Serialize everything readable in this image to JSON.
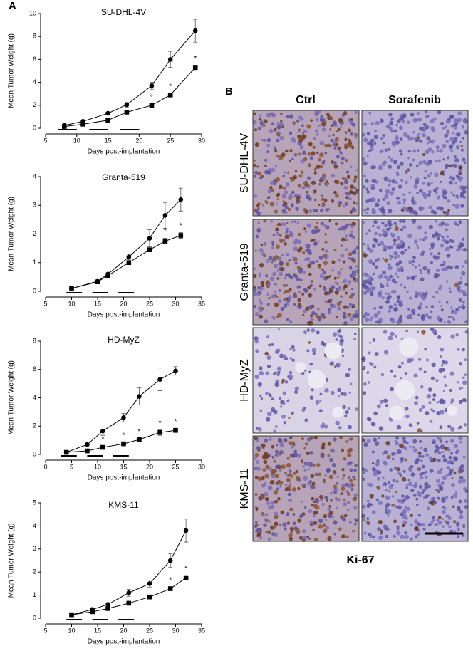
{
  "panel_labels": [
    "A",
    "B"
  ],
  "chart_data": [
    {
      "type": "line",
      "title": "SU-DHL-4V",
      "xlabel": "Days post-implantation",
      "ylabel": "Mean Tumor Weight (g)",
      "x": [
        8,
        11,
        15,
        18,
        22,
        25,
        29
      ],
      "xlim": [
        5,
        30
      ],
      "xticks": [
        5,
        10,
        15,
        20,
        25,
        30
      ],
      "ylim": [
        0,
        10
      ],
      "yticks": [
        0,
        2,
        4,
        6,
        8,
        10
      ],
      "series": [
        {
          "marker": "circle",
          "color": "#000000",
          "values": [
            0.25,
            0.6,
            1.3,
            2.05,
            3.7,
            6.0,
            8.5
          ],
          "errors": [
            0.1,
            0.1,
            0.1,
            0.2,
            0.3,
            0.7,
            1.0
          ]
        },
        {
          "marker": "square",
          "color": "#000000",
          "values": [
            0.15,
            0.35,
            0.7,
            1.4,
            2.0,
            2.9,
            5.3
          ],
          "errors": [
            0.05,
            0.05,
            0.1,
            0.1,
            0.1,
            0.15,
            0.2
          ]
        }
      ],
      "treatment": [
        [
          7,
          10
        ],
        [
          12,
          15
        ],
        [
          17,
          20
        ]
      ],
      "annotations": [
        {
          "x": 22,
          "text": "°"
        },
        {
          "x": 25,
          "text": "*"
        },
        {
          "x": 29,
          "text": "*"
        }
      ]
    },
    {
      "type": "line",
      "title": "Granta-519",
      "xlabel": "Days post-implantation",
      "ylabel": "Mean Tumor Weight (g)",
      "x": [
        10,
        15,
        17,
        21,
        25,
        28,
        31
      ],
      "xlim": [
        5,
        35
      ],
      "xticks": [
        5,
        10,
        15,
        20,
        25,
        30,
        35
      ],
      "ylim": [
        0,
        4
      ],
      "yticks": [
        0,
        1,
        2,
        3,
        4
      ],
      "series": [
        {
          "marker": "circle",
          "color": "#000000",
          "values": [
            0.1,
            0.35,
            0.6,
            1.2,
            1.85,
            2.65,
            3.2
          ],
          "errors": [
            0.03,
            0.05,
            0.05,
            0.1,
            0.3,
            0.45,
            0.4
          ]
        },
        {
          "marker": "square",
          "color": "#000000",
          "values": [
            0.1,
            0.33,
            0.55,
            1.0,
            1.45,
            1.75,
            1.95
          ],
          "errors": [
            0.03,
            0.03,
            0.05,
            0.05,
            0.05,
            0.1,
            0.1
          ]
        }
      ],
      "treatment": [
        [
          9,
          12
        ],
        [
          14,
          17
        ],
        [
          19,
          22
        ]
      ],
      "annotations": [
        {
          "x": 28,
          "text": "°"
        },
        {
          "x": 31,
          "text": "*"
        }
      ]
    },
    {
      "type": "line",
      "title": "HD-MyZ",
      "xlabel": "Days post-implantation",
      "ylabel": "Mean Tumor Weight (g)",
      "x": [
        4,
        8,
        11,
        15,
        18,
        22,
        25
      ],
      "xlim": [
        0,
        30
      ],
      "xticks": [
        0,
        5,
        10,
        15,
        20,
        25,
        30
      ],
      "ylim": [
        0,
        8
      ],
      "yticks": [
        0,
        2,
        4,
        6,
        8
      ],
      "series": [
        {
          "marker": "circle",
          "color": "#000000",
          "values": [
            0.15,
            0.7,
            1.65,
            2.6,
            4.1,
            5.3,
            5.9
          ],
          "errors": [
            0.05,
            0.1,
            0.3,
            0.3,
            0.6,
            0.8,
            0.3
          ]
        },
        {
          "marker": "square",
          "color": "#000000",
          "values": [
            0.15,
            0.25,
            0.5,
            0.75,
            1.05,
            1.55,
            1.7
          ],
          "errors": [
            0.05,
            0.05,
            0.05,
            0.1,
            0.1,
            0.2,
            0.15
          ]
        }
      ],
      "treatment": [
        [
          3,
          6
        ],
        [
          8,
          11
        ],
        [
          13,
          16
        ]
      ],
      "annotations": [
        {
          "x": 11,
          "text": "°"
        },
        {
          "x": 15,
          "text": "*"
        },
        {
          "x": 18,
          "text": "*"
        },
        {
          "x": 22,
          "text": "*"
        },
        {
          "x": 25,
          "text": "*"
        }
      ]
    },
    {
      "type": "line",
      "title": "KMS-11",
      "xlabel": "Days post-implantation",
      "ylabel": "Mean Tumor Weight (g)",
      "x": [
        10,
        14,
        17,
        21,
        25,
        29,
        32
      ],
      "xlim": [
        5,
        35
      ],
      "xticks": [
        5,
        10,
        15,
        20,
        25,
        30,
        35
      ],
      "ylim": [
        0,
        5
      ],
      "yticks": [
        0,
        1,
        2,
        3,
        4,
        5
      ],
      "series": [
        {
          "marker": "circle",
          "color": "#000000",
          "values": [
            0.15,
            0.38,
            0.6,
            1.1,
            1.5,
            2.5,
            3.8
          ],
          "errors": [
            0.03,
            0.05,
            0.05,
            0.15,
            0.15,
            0.3,
            0.5
          ]
        },
        {
          "marker": "square",
          "color": "#000000",
          "values": [
            0.15,
            0.28,
            0.42,
            0.65,
            0.92,
            1.28,
            1.75
          ],
          "errors": [
            0.03,
            0.03,
            0.03,
            0.05,
            0.05,
            0.08,
            0.1
          ]
        }
      ],
      "treatment": [
        [
          9,
          12
        ],
        [
          14,
          17
        ],
        [
          19,
          22
        ]
      ],
      "annotations": [
        {
          "x": 29,
          "text": "*"
        },
        {
          "x": 32,
          "text": "*"
        }
      ]
    }
  ],
  "ihc": {
    "columns": [
      "Ctrl",
      "Sorafenib"
    ],
    "rows": [
      "SU-DHL-4V",
      "Granta-519",
      "HD-MyZ",
      "KMS-11"
    ],
    "stain": "Ki-67"
  }
}
